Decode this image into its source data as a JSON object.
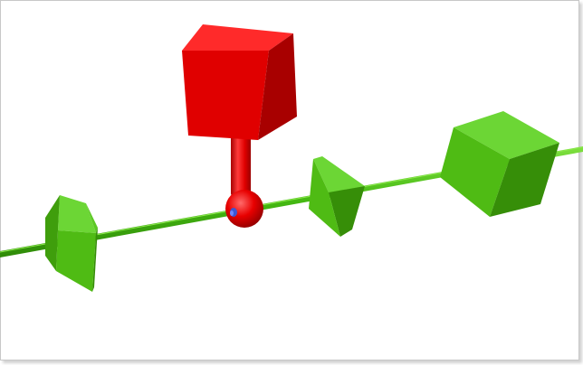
{
  "scene": {
    "background": "#ffffff",
    "frame_border": "#c8c8c8",
    "colors": {
      "rod": "#44b812",
      "rod_light": "#7fe040",
      "green_light": "#6cd635",
      "green_mid": "#4fbb14",
      "green_dark": "#368e08",
      "red_light": "#ff2a2a",
      "red_mid": "#e00000",
      "red_dark": "#a80000",
      "blue_accent": "#3a56d6"
    },
    "objects": [
      "green-rod",
      "green-wedge-left",
      "red-ball-joint",
      "red-stem",
      "red-cube",
      "green-wedge-middle",
      "green-cube-right"
    ]
  }
}
